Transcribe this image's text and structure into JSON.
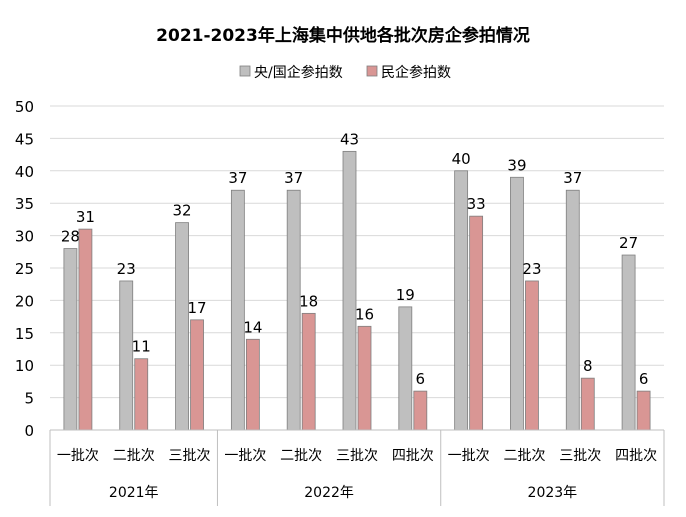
{
  "chart_data": {
    "type": "bar",
    "title": "2021-2023年上海集中供地各批次房企参拍情况",
    "legend_position": "top",
    "grid": true,
    "ylim": [
      0,
      50
    ],
    "yticks": [
      0,
      5,
      10,
      15,
      20,
      25,
      30,
      35,
      40,
      45,
      50
    ],
    "categories": [
      "一批次",
      "二批次",
      "三批次",
      "一批次",
      "二批次",
      "三批次",
      "四批次",
      "一批次",
      "二批次",
      "三批次",
      "四批次"
    ],
    "groups": [
      {
        "label": "2021年",
        "count": 3
      },
      {
        "label": "2022年",
        "count": 4
      },
      {
        "label": "2023年",
        "count": 4
      }
    ],
    "series": [
      {
        "name": "央/国企参拍数",
        "color": "#bfbfbf",
        "values": [
          28,
          23,
          32,
          37,
          37,
          43,
          19,
          40,
          39,
          37,
          27
        ]
      },
      {
        "name": "民企参拍数",
        "color": "#d99694",
        "values": [
          31,
          11,
          17,
          14,
          18,
          16,
          6,
          33,
          23,
          8,
          6
        ]
      }
    ]
  }
}
